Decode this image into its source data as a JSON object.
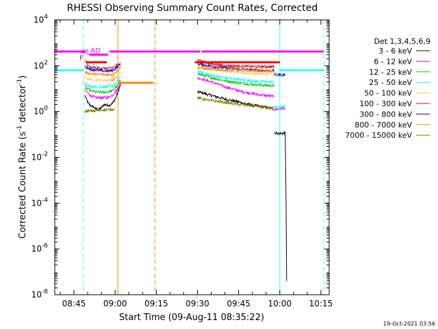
{
  "chart_data": {
    "type": "line",
    "title": "RHESSI Observing Summary Count Rates, Corrected",
    "xlabel": "Start Time (09-Aug-11 08:35:22)",
    "ylabel_parts": [
      "Corrected Count Rate (s",
      "-1",
      " detector",
      "-1",
      ")"
    ],
    "footer": "19-Oct-2021 03:56",
    "y_scale": "log",
    "ylim": [
      1e-08,
      10000.0
    ],
    "y_ticks": [
      {
        "mant": "10",
        "exp": "4",
        "v": 4
      },
      {
        "mant": "10",
        "exp": "2",
        "v": 2
      },
      {
        "mant": "10",
        "exp": "0",
        "v": 0
      },
      {
        "mant": "10",
        "exp": "-2",
        "v": -2
      },
      {
        "mant": "10",
        "exp": "-4",
        "v": -4
      },
      {
        "mant": "10",
        "exp": "-6",
        "v": -6
      },
      {
        "mant": "10",
        "exp": "-8",
        "v": -8
      }
    ],
    "xlim_minutes_since_0830": [
      8,
      108
    ],
    "x_ticks": [
      {
        "label": "08:45",
        "t": 15
      },
      {
        "label": "09:00",
        "t": 30
      },
      {
        "label": "09:15",
        "t": 45
      },
      {
        "label": "09:30",
        "t": 60
      },
      {
        "label": "09:45",
        "t": 75
      },
      {
        "label": "10:00",
        "t": 90
      },
      {
        "label": "10:15",
        "t": 105
      }
    ],
    "legend_header": "Det 1,3,4,5,6,9",
    "legend_position": "right",
    "series": [
      {
        "name": "3 - 6 keV",
        "color": "#000000",
        "segments": [
          [
            [
              19,
              5
            ],
            [
              20,
              2.5
            ],
            [
              21,
              1.8
            ],
            [
              22,
              1.6
            ],
            [
              23,
              1.3
            ],
            [
              24,
              1.2
            ],
            [
              25,
              1.5
            ],
            [
              26,
              2.0
            ],
            [
              27,
              1.9
            ],
            [
              28,
              1.9
            ],
            [
              29,
              2.3
            ],
            [
              30,
              3.5
            ],
            [
              31,
              7.0
            ],
            [
              32,
              15
            ]
          ],
          [
            [
              60,
              7
            ],
            [
              61,
              7
            ],
            [
              65,
              5
            ],
            [
              70,
              3.5
            ],
            [
              75,
              2.6
            ],
            [
              80,
              1.9
            ],
            [
              85,
              1.5
            ],
            [
              88,
              1.3
            ]
          ],
          [
            [
              88,
              0.12
            ],
            [
              89.5,
              0.11
            ],
            [
              91,
              0.11
            ],
            [
              92,
              0.12
            ]
          ],
          [
            [
              92,
              0.12
            ],
            [
              92.3,
              0.0001
            ],
            [
              92.5,
              4e-08
            ]
          ]
        ]
      },
      {
        "name": "6 - 12 keV",
        "color": "#ff00ff",
        "segments": [
          [
            [
              19,
              9
            ],
            [
              21,
              5
            ],
            [
              23,
              4
            ],
            [
              25,
              4
            ],
            [
              27,
              4
            ],
            [
              29,
              5
            ],
            [
              31,
              10
            ],
            [
              32,
              20
            ]
          ],
          [
            [
              60,
              30
            ],
            [
              62,
              25
            ],
            [
              65,
              20
            ],
            [
              70,
              12
            ],
            [
              75,
              8
            ],
            [
              80,
              6
            ],
            [
              85,
              5
            ],
            [
              88,
              4.5
            ]
          ],
          [
            [
              88,
              1.2
            ],
            [
              92,
              1.4
            ]
          ]
        ]
      },
      {
        "name": "12 - 25 keV",
        "color": "#00cc00",
        "segments": [
          [
            [
              19,
              12
            ],
            [
              21,
              8
            ],
            [
              23,
              7
            ],
            [
              25,
              7
            ],
            [
              27,
              7
            ],
            [
              29,
              8
            ],
            [
              31,
              14
            ],
            [
              32,
              25
            ]
          ],
          [
            [
              60,
              45
            ],
            [
              62,
              38
            ],
            [
              65,
              30
            ],
            [
              70,
              22
            ],
            [
              75,
              18
            ],
            [
              80,
              15
            ],
            [
              85,
              14
            ],
            [
              88,
              13
            ]
          ]
        ]
      },
      {
        "name": "25 - 50 keV",
        "color": "#00ffff",
        "segments": [
          [
            [
              19,
              16
            ],
            [
              21,
              12
            ],
            [
              23,
              12
            ],
            [
              25,
              12
            ],
            [
              27,
              12
            ],
            [
              29,
              13
            ],
            [
              31,
              20
            ],
            [
              32,
              35
            ]
          ],
          [
            [
              60,
              55
            ],
            [
              62,
              48
            ],
            [
              65,
              38
            ],
            [
              70,
              30
            ],
            [
              75,
              25
            ],
            [
              80,
              21
            ],
            [
              85,
              20
            ],
            [
              88,
              19
            ]
          ],
          [
            [
              88,
              1.5
            ],
            [
              92,
              1.6
            ]
          ]
        ]
      },
      {
        "name": "50 - 100 keV",
        "color": "#ffcc66",
        "segments": [
          [
            [
              19,
              30
            ],
            [
              21,
              25
            ],
            [
              23,
              24
            ],
            [
              25,
              24
            ],
            [
              27,
              23
            ],
            [
              29,
              24
            ],
            [
              31,
              35
            ],
            [
              32,
              55
            ]
          ],
          [
            [
              60,
              100
            ],
            [
              62,
              90
            ],
            [
              65,
              75
            ],
            [
              70,
              60
            ],
            [
              75,
              50
            ],
            [
              80,
              46
            ],
            [
              85,
              43
            ],
            [
              88,
              42
            ]
          ]
        ]
      },
      {
        "name": "100 - 300 keV",
        "color": "#ff0000",
        "segments": [
          [
            [
              19,
              170
            ],
            [
              20,
              95
            ],
            [
              21,
              85
            ],
            [
              23,
              80
            ],
            [
              25,
              78
            ],
            [
              27,
              75
            ],
            [
              29,
              80
            ],
            [
              31,
              110
            ],
            [
              32,
              150
            ]
          ],
          [
            [
              60,
              180
            ],
            [
              62,
              150
            ],
            [
              65,
              120
            ],
            [
              70,
              100
            ],
            [
              75,
              95
            ],
            [
              80,
              92
            ],
            [
              85,
              90
            ],
            [
              88,
              90
            ]
          ]
        ]
      },
      {
        "name": "300 - 800 keV",
        "color": "#0000cc",
        "segments": [
          [
            [
              19,
              90
            ],
            [
              20,
              80
            ],
            [
              21,
              70
            ],
            [
              23,
              65
            ],
            [
              25,
              60
            ],
            [
              27,
              58
            ],
            [
              29,
              62
            ],
            [
              31,
              90
            ],
            [
              32,
              120
            ]
          ],
          [
            [
              60,
              120
            ],
            [
              62,
              110
            ],
            [
              65,
              95
            ],
            [
              70,
              80
            ],
            [
              75,
              70
            ],
            [
              80,
              65
            ],
            [
              85,
              62
            ],
            [
              88,
              60
            ]
          ],
          [
            [
              88,
              40
            ],
            [
              92,
              40
            ]
          ]
        ]
      },
      {
        "name": "800 - 7000 keV",
        "color": "#ff8800",
        "segments": [
          [
            [
              19,
              50
            ],
            [
              21,
              45
            ],
            [
              23,
              42
            ],
            [
              25,
              42
            ],
            [
              27,
              40
            ],
            [
              29,
              42
            ],
            [
              31,
              60
            ],
            [
              32,
              90
            ]
          ],
          [
            [
              60,
              80
            ],
            [
              62,
              75
            ],
            [
              65,
              70
            ],
            [
              70,
              65
            ],
            [
              75,
              62
            ],
            [
              80,
              60
            ],
            [
              85,
              58
            ],
            [
              88,
              57
            ]
          ]
        ]
      },
      {
        "name": "7000 - 15000 keV",
        "color": "#808000",
        "segments": [
          [
            [
              19,
              1
            ],
            [
              20,
              1.05
            ],
            [
              22,
              1.05
            ],
            [
              24,
              1.1
            ],
            [
              26,
              1.2
            ],
            [
              28,
              1.2
            ],
            [
              29,
              1.25
            ],
            [
              30,
              1.3
            ]
          ],
          [
            [
              60,
              4
            ],
            [
              62,
              3.5
            ],
            [
              65,
              3
            ],
            [
              70,
              2.5
            ],
            [
              75,
              2
            ],
            [
              80,
              1.8
            ],
            [
              85,
              1.5
            ],
            [
              88,
              1.4
            ]
          ]
        ]
      }
    ],
    "state_bars": [
      {
        "label": "N",
        "color": "#33ffff",
        "y_level": 1.8,
        "spans": [
          [
            8,
            18.5
          ],
          [
            90,
            106
          ]
        ]
      },
      {
        "label": "S",
        "color": "#ff8800",
        "y_level": 1.25,
        "spans": [
          [
            31,
            44
          ]
        ]
      },
      {
        "label": "F",
        "color": "#ff0000",
        "y_level": 2.15,
        "spans": [
          [
            19.5,
            27
          ],
          [
            59,
            90
          ]
        ]
      },
      {
        "label": "AD",
        "color": "#ff00ff",
        "y_level": 2.48,
        "spans": [
          [
            20.5,
            27.5
          ]
        ]
      },
      {
        "label": "A1",
        "color": "#ff00ff",
        "y_level": 2.62,
        "spans": [
          [
            8,
            19.5
          ],
          [
            28,
            61
          ],
          [
            61.5,
            106
          ]
        ]
      }
    ],
    "vertical_lines": [
      {
        "t": 18.5,
        "color": "#33ffff",
        "dashed": true
      },
      {
        "t": 31,
        "color": "#ff8800",
        "dashed": false
      },
      {
        "t": 44.5,
        "color": "#ff8800",
        "dashed": true
      },
      {
        "t": 90,
        "color": "#33ffff",
        "dashed": false
      },
      {
        "t": 106,
        "color": "#33ffff",
        "dashed": true
      }
    ]
  }
}
